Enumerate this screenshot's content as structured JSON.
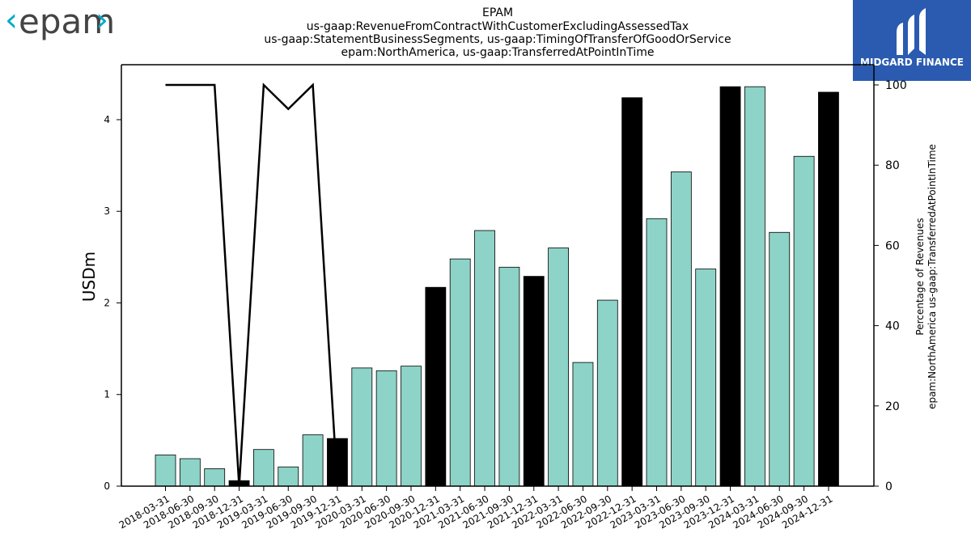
{
  "logo_left": {
    "text": "epam",
    "accent_color": "#00aacc",
    "text_color": "#444444"
  },
  "logo_right": {
    "text": "MIDGARD FINANCE",
    "bg_color": "#2a5bb0"
  },
  "chart_data": {
    "type": "bar",
    "title_lines": [
      "EPAM",
      "us-gaap:RevenueFromContractWithCustomerExcludingAssessedTax",
      "us-gaap:StatementBusinessSegments, us-gaap:TimingOfTransferOfGoodOrService",
      "epam:NorthAmerica, us-gaap:TransferredAtPointInTime"
    ],
    "ylabel": "USDm",
    "y2label_lines": [
      "Percentage of Revenues",
      "epam:NorthAmerica us-gaap:TransferredAtPointInTime"
    ],
    "ylim": [
      0,
      4.6
    ],
    "y2lim": [
      0,
      100
    ],
    "yticks": [
      "0",
      "1",
      "2",
      "3",
      "4"
    ],
    "y2ticks": [
      "0",
      "20",
      "40",
      "60",
      "80",
      "100"
    ],
    "categories": [
      "2018-03-31",
      "2018-06-30",
      "2018-09-30",
      "2018-12-31",
      "2019-03-31",
      "2019-06-30",
      "2019-09-30",
      "2019-12-31",
      "2020-03-31",
      "2020-06-30",
      "2020-09-30",
      "2020-12-31",
      "2021-03-31",
      "2021-06-30",
      "2021-09-30",
      "2021-12-31",
      "2022-03-31",
      "2022-06-30",
      "2022-09-30",
      "2022-12-31",
      "2023-03-31",
      "2023-06-30",
      "2023-09-30",
      "2023-12-31",
      "2024-03-31",
      "2024-06-30",
      "2024-09-30",
      "2024-12-31"
    ],
    "values": [
      0.34,
      0.3,
      0.19,
      0.06,
      0.4,
      0.21,
      0.56,
      0.52,
      1.29,
      1.26,
      1.31,
      2.17,
      2.48,
      2.79,
      2.39,
      2.29,
      2.6,
      1.35,
      2.03,
      4.24,
      2.92,
      3.43,
      2.37,
      4.36,
      4.36,
      2.77,
      3.6,
      4.3
    ],
    "highlight": [
      false,
      false,
      false,
      true,
      false,
      false,
      false,
      true,
      false,
      false,
      false,
      true,
      false,
      false,
      false,
      true,
      false,
      false,
      false,
      true,
      false,
      false,
      false,
      true,
      false,
      false,
      false,
      true
    ],
    "percent_line": [
      100,
      100,
      100,
      0,
      100,
      94,
      100,
      0
    ],
    "colors": {
      "bar": "#8dd3c7",
      "highlight": "#000000",
      "line": "#000000"
    }
  }
}
